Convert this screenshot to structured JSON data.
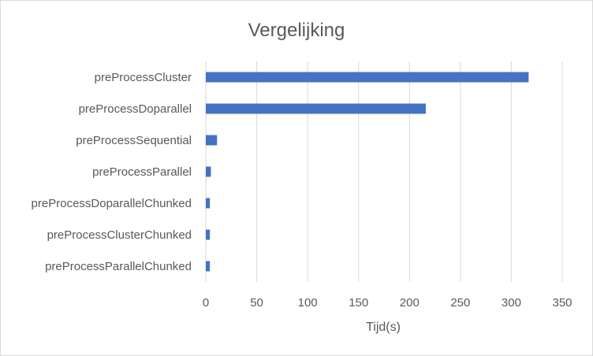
{
  "chart_data": {
    "type": "bar",
    "orientation": "horizontal",
    "title": "Vergelijking",
    "xlabel": "Tijd(s)",
    "ylabel": "",
    "categories": [
      "preProcessCluster",
      "preProcessDoparallel",
      "preProcessSequential",
      "preProcessParallel",
      "preProcessDoparallelChunked",
      "preProcessClusterChunked",
      "preProcessParallelChunked"
    ],
    "values": [
      317,
      216,
      11,
      5,
      4,
      4,
      4
    ],
    "xlim": [
      0,
      350
    ],
    "xticks": [
      "0",
      "50",
      "100",
      "150",
      "200",
      "250",
      "300",
      "350"
    ],
    "grid": true,
    "bar_color": "#4472c4",
    "grid_color": "#d9d9d9",
    "text_color": "#595959"
  }
}
